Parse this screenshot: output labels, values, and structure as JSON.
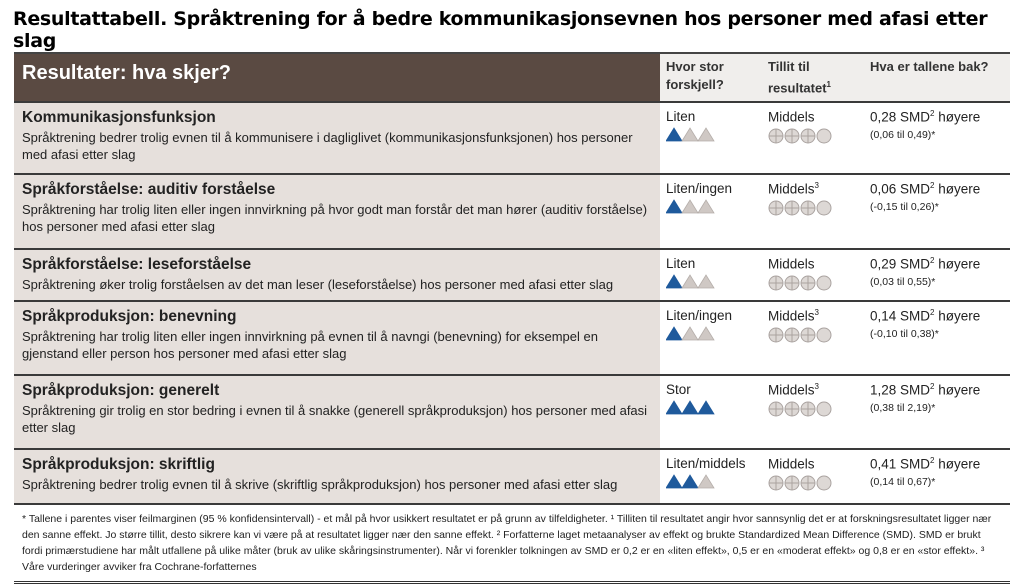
{
  "title": "Resultattabell. Språktrening for å bedre kommunikasjonsevnen hos personer med afasi etter slag",
  "header": {
    "results": "Resultater: hva skjer?",
    "difference": "Hvor stor forskjell?",
    "certainty": "Tillit til resultatet",
    "certainty_sup": "1",
    "numbers": "Hva er tallene bak?"
  },
  "colors": {
    "header_bg": "#5a4a42",
    "row_bg": "#e6e0dc",
    "triangle_filled": "#1f5a9c",
    "triangle_empty": "#cfc8c4",
    "circle": "#bdb6b2"
  },
  "rows": [
    {
      "title": "Kommunikasjonsfunksjon",
      "desc": "Språktrening bedrer trolig evnen til å kommunisere i dagliglivet (kommunikasjonsfunksjonen) hos personer med afasi etter slag",
      "difference": "Liten",
      "triangles_filled": 1,
      "certainty": "Middels",
      "certainty_sup": "",
      "circles_filled": 3,
      "value": "0,28 SMD",
      "value_sup": "2",
      "value_suffix": " høyere",
      "ci": "(0,06 til 0,49)*"
    },
    {
      "title": "Språkforståelse: auditiv forståelse",
      "desc": "Språktrening har trolig liten eller ingen innvirkning på hvor godt man forstår det man hører (auditiv forståelse) hos personer med afasi etter slag",
      "difference": "Liten/ingen",
      "triangles_filled": 1,
      "certainty": "Middels",
      "certainty_sup": "3",
      "circles_filled": 3,
      "value": "0,06 SMD",
      "value_sup": "2",
      "value_suffix": " høyere",
      "ci": "(-0,15 til 0,26)*"
    },
    {
      "title": "Språkforståelse: leseforståelse",
      "desc": "Språktrening øker trolig forståelsen av det man leser (leseforståelse) hos personer med afasi etter slag",
      "difference": "Liten",
      "triangles_filled": 1,
      "certainty": "Middels",
      "certainty_sup": "",
      "circles_filled": 3,
      "value": "0,29 SMD",
      "value_sup": "2",
      "value_suffix": " høyere",
      "ci": "(0,03 til 0,55)*"
    },
    {
      "title": "Språkproduksjon: benevning",
      "desc": "Språktrening har trolig liten eller ingen innvirkning på evnen til å navngi (benevning) for eksempel en gjenstand eller person hos personer med afasi etter slag",
      "difference": "Liten/ingen",
      "triangles_filled": 1,
      "certainty": "Middels",
      "certainty_sup": "3",
      "circles_filled": 3,
      "value": "0,14 SMD",
      "value_sup": "2",
      "value_suffix": " høyere",
      "ci": "(-0,10 til 0,38)*"
    },
    {
      "title": "Språkproduksjon: generelt",
      "desc": "Språktrening gir trolig en stor bedring i evnen til å snakke (generell språkproduksjon) hos personer med afasi etter slag",
      "difference": "Stor",
      "triangles_filled": 3,
      "certainty": "Middels",
      "certainty_sup": "3",
      "circles_filled": 3,
      "value": "1,28 SMD",
      "value_sup": "2",
      "value_suffix": " høyere",
      "ci": "(0,38 til 2,19)*"
    },
    {
      "title": "Språkproduksjon: skriftlig",
      "desc": "Språktrening bedrer trolig evnen til å skrive (skriftlig språkproduksjon) hos personer med afasi etter slag",
      "difference": "Liten/middels",
      "triangles_filled": 2,
      "certainty": "Middels",
      "certainty_sup": "",
      "circles_filled": 3,
      "value": "0,41 SMD",
      "value_sup": "2",
      "value_suffix": " høyere",
      "ci": "(0,14 til 0,67)*"
    }
  ],
  "footnote": "* Tallene i parentes viser feilmarginen (95 % konfidensintervall) - et mål på hvor usikkert resultatet er på grunn av tilfeldigheter. ¹ Tilliten til resultatet angir hvor sannsynlig det er at forskningsresultatet ligger nær den sanne effekt. Jo større tillit, desto sikrere kan vi være på at resultatet ligger nær den sanne effekt. ² Forfatterne laget metaanalyser av effekt og brukte Standardized Mean Difference (SMD). SMD er brukt fordi primærstudiene har målt utfallene på ulike måter (bruk av ulike skåringsinstrumenter). Når vi forenkler tolkningen av SMD er 0,2 er en «liten effekt», 0,5 er en «moderat effekt» og 0,8 er en «stor effekt». ³ Våre vurderinger avviker fra Cochrane-forfatternes"
}
